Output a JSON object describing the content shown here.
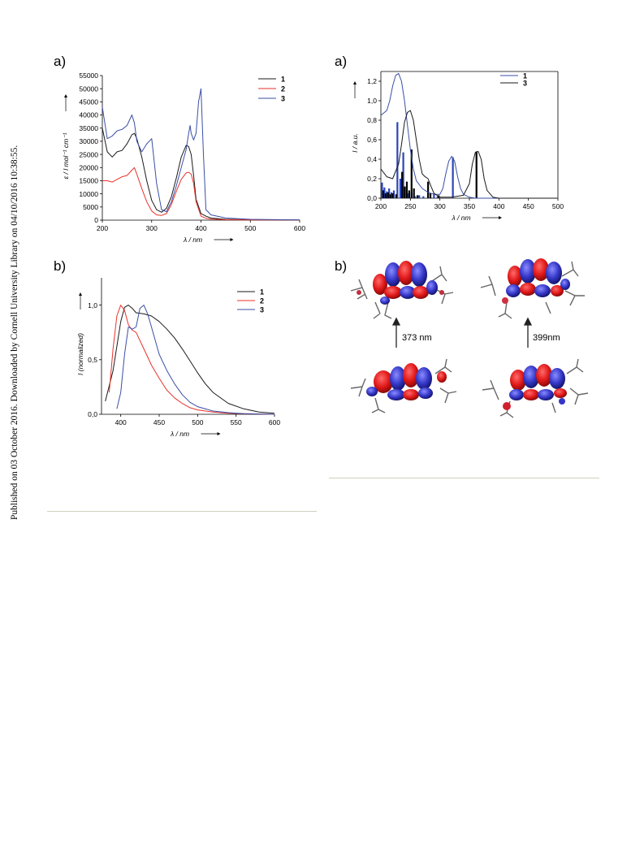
{
  "sidebar_text": "Published on 03 October 2016. Downloaded by Cornell University Library on 04/10/2016 10:38:55.",
  "panels": {
    "left_a": "a)",
    "left_b": "b)",
    "right_a": "a)",
    "right_b": "b)"
  },
  "chart_data": [
    {
      "id": "absorption",
      "type": "line",
      "xlabel": "λ / nm",
      "ylabel": "ε / l mol⁻¹ cm⁻¹",
      "xlim": [
        200,
        600
      ],
      "ylim": [
        0,
        55000
      ],
      "xticks": [
        "200",
        "300",
        "400",
        "500",
        "600"
      ],
      "yticks": [
        "0",
        "5000",
        "10000",
        "15000",
        "20000",
        "25000",
        "30000",
        "35000",
        "40000",
        "45000",
        "50000",
        "55000"
      ],
      "legend": "top-right",
      "series": [
        {
          "name": "1",
          "color": "#1a1a1a",
          "x": [
            200,
            210,
            220,
            230,
            240,
            250,
            260,
            265,
            270,
            280,
            290,
            300,
            310,
            320,
            330,
            340,
            350,
            360,
            370,
            375,
            380,
            385,
            390,
            400,
            410,
            420,
            450,
            500,
            600
          ],
          "y": [
            35000,
            26000,
            24000,
            26000,
            26500,
            29000,
            32500,
            33000,
            31000,
            24000,
            15000,
            7500,
            4000,
            3000,
            4500,
            9000,
            16000,
            24000,
            28500,
            28000,
            25000,
            17000,
            8000,
            2500,
            1500,
            800,
            300,
            150,
            100
          ]
        },
        {
          "name": "2",
          "color": "#e8322a",
          "x": [
            200,
            210,
            220,
            230,
            240,
            250,
            260,
            265,
            270,
            280,
            290,
            300,
            310,
            320,
            330,
            340,
            350,
            360,
            370,
            375,
            380,
            385,
            390,
            400,
            410,
            420,
            450,
            500,
            600
          ],
          "y": [
            15000,
            15000,
            14500,
            15500,
            16500,
            17000,
            19000,
            20000,
            17500,
            12000,
            7000,
            3500,
            2000,
            1800,
            2500,
            6000,
            11000,
            15500,
            18000,
            18200,
            17500,
            14000,
            7000,
            1500,
            700,
            400,
            200,
            100,
            50
          ]
        },
        {
          "name": "3",
          "color": "#3a4fa6",
          "x": [
            200,
            210,
            220,
            230,
            240,
            250,
            260,
            265,
            270,
            280,
            290,
            300,
            310,
            320,
            330,
            340,
            350,
            360,
            370,
            375,
            378,
            380,
            385,
            390,
            395,
            400,
            405,
            410,
            420,
            450,
            500,
            600
          ],
          "y": [
            43000,
            31000,
            32000,
            34000,
            34500,
            36000,
            40000,
            37000,
            30000,
            26000,
            29000,
            31000,
            14000,
            4000,
            3200,
            7000,
            13000,
            20000,
            27000,
            33000,
            36000,
            33000,
            30500,
            33000,
            45000,
            50000,
            25000,
            4000,
            2000,
            800,
            300,
            100
          ]
        }
      ]
    },
    {
      "id": "emission",
      "type": "line",
      "xlabel": "λ / nm",
      "ylabel": "I (normalized)",
      "xlim": [
        375,
        600
      ],
      "ylim": [
        0,
        1.25
      ],
      "xticks": [
        "400",
        "450",
        "500",
        "550",
        "600"
      ],
      "yticks": [
        "0,0",
        "0,5",
        "1,0"
      ],
      "legend": "top-right",
      "series": [
        {
          "name": "1",
          "color": "#1a1a1a",
          "x": [
            380,
            390,
            400,
            405,
            410,
            415,
            420,
            430,
            440,
            450,
            460,
            470,
            480,
            490,
            500,
            510,
            520,
            540,
            560,
            580,
            600
          ],
          "y": [
            0.12,
            0.4,
            0.85,
            0.98,
            1.0,
            0.97,
            0.93,
            0.92,
            0.9,
            0.85,
            0.78,
            0.7,
            0.6,
            0.49,
            0.38,
            0.28,
            0.2,
            0.1,
            0.05,
            0.02,
            0.01
          ]
        },
        {
          "name": "2",
          "color": "#e8322a",
          "x": [
            385,
            390,
            395,
            400,
            405,
            410,
            415,
            420,
            430,
            440,
            450,
            460,
            470,
            480,
            490,
            500,
            520,
            540,
            560,
            600
          ],
          "y": [
            0.2,
            0.6,
            0.9,
            1.0,
            0.95,
            0.82,
            0.77,
            0.75,
            0.6,
            0.45,
            0.33,
            0.22,
            0.15,
            0.1,
            0.06,
            0.04,
            0.02,
            0.01,
            0.005,
            0.0
          ]
        },
        {
          "name": "3",
          "color": "#3a4fa6",
          "x": [
            395,
            400,
            405,
            410,
            415,
            420,
            425,
            430,
            435,
            440,
            450,
            460,
            470,
            480,
            490,
            500,
            520,
            540,
            560,
            600
          ],
          "y": [
            0.05,
            0.2,
            0.55,
            0.8,
            0.78,
            0.8,
            0.97,
            1.0,
            0.92,
            0.8,
            0.55,
            0.4,
            0.28,
            0.18,
            0.11,
            0.07,
            0.03,
            0.015,
            0.005,
            0.0
          ]
        }
      ]
    },
    {
      "id": "calculated",
      "type": "line",
      "xlabel": "λ / nm",
      "ylabel": "I / a.u.",
      "xlim": [
        200,
        500
      ],
      "ylim": [
        0,
        1.3
      ],
      "xticks": [
        "200",
        "250",
        "300",
        "350",
        "400",
        "450",
        "500"
      ],
      "yticks": [
        "0,0",
        "0,2",
        "0,4",
        "0,6",
        "0,8",
        "1,0",
        "1,2"
      ],
      "legend": "top-right",
      "series": [
        {
          "name": "1",
          "color": "#3a4fa6",
          "x": [
            200,
            210,
            215,
            220,
            225,
            230,
            235,
            240,
            245,
            250,
            255,
            260,
            270,
            280,
            290,
            300,
            305,
            310,
            315,
            320,
            325,
            330,
            335,
            340,
            350,
            360,
            380,
            400,
            450,
            500
          ],
          "y": [
            0.85,
            0.9,
            1.0,
            1.15,
            1.26,
            1.28,
            1.2,
            1.0,
            0.75,
            0.5,
            0.3,
            0.18,
            0.1,
            0.06,
            0.04,
            0.04,
            0.1,
            0.25,
            0.38,
            0.43,
            0.38,
            0.22,
            0.1,
            0.04,
            0.01,
            0.0,
            0.0,
            0.0,
            0.0,
            0.0
          ]
        },
        {
          "name": "3",
          "color": "#1a1a1a",
          "x": [
            200,
            210,
            220,
            230,
            235,
            240,
            245,
            250,
            255,
            260,
            265,
            270,
            275,
            280,
            285,
            290,
            300,
            320,
            340,
            350,
            355,
            360,
            365,
            370,
            375,
            380,
            390,
            400,
            450,
            500
          ],
          "y": [
            0.3,
            0.22,
            0.2,
            0.35,
            0.55,
            0.78,
            0.88,
            0.9,
            0.8,
            0.6,
            0.4,
            0.25,
            0.22,
            0.2,
            0.12,
            0.05,
            0.01,
            0.01,
            0.03,
            0.15,
            0.35,
            0.47,
            0.48,
            0.4,
            0.2,
            0.08,
            0.01,
            0.0,
            0.0,
            0.0
          ]
        }
      ],
      "sticks": [
        {
          "series": "1",
          "x": [
            202,
            206,
            210,
            214,
            218,
            222,
            228,
            233,
            238,
            243,
            247,
            252,
            258,
            265,
            272,
            290,
            296,
            322
          ],
          "y": [
            0.16,
            0.11,
            0.07,
            0.1,
            0.06,
            0.08,
            0.78,
            0.2,
            0.47,
            0.12,
            0.05,
            0.06,
            0.02,
            0.03,
            0.02,
            0.05,
            0.02,
            0.42
          ]
        },
        {
          "series": "3",
          "x": [
            204,
            208,
            212,
            216,
            220,
            226,
            236,
            240,
            244,
            248,
            252,
            256,
            262,
            280,
            284,
            298,
            362
          ],
          "y": [
            0.08,
            0.05,
            0.06,
            0.04,
            0.05,
            0.04,
            0.27,
            0.12,
            0.17,
            0.08,
            0.5,
            0.1,
            0.03,
            0.17,
            0.05,
            0.03,
            0.48
          ]
        }
      ]
    }
  ],
  "orbital_panel": {
    "left_transition": "373 nm",
    "right_transition": "399nm"
  }
}
